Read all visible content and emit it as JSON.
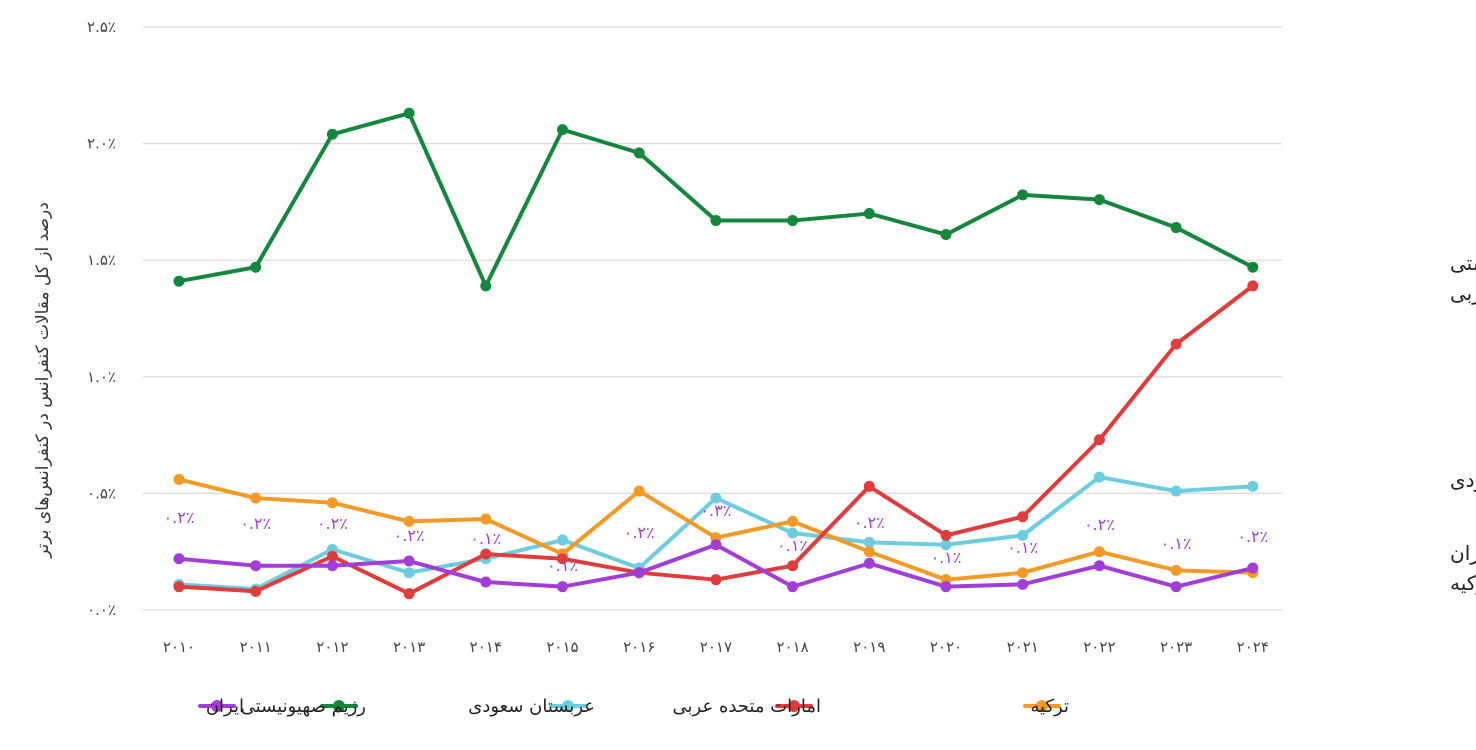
{
  "chart_data": {
    "type": "line",
    "ylabel": "درصد از کل مقالات کنفرانس در کنفرانس‌های برتر",
    "x": [
      "۲۰۱۰",
      "۲۰۱۱",
      "۲۰۱۲",
      "۲۰۱۳",
      "۲۰۱۴",
      "۲۰۱۵",
      "۲۰۱۶",
      "۲۰۱۷",
      "۲۰۱۸",
      "۲۰۱۹",
      "۲۰۲۰",
      "۲۰۲۱",
      "۲۰۲۲",
      "۲۰۲۳",
      "۲۰۲۴"
    ],
    "ylim": [
      0,
      2.5
    ],
    "yticks": [
      {
        "value": 0.0,
        "label": "۰.۰٪"
      },
      {
        "value": 0.5,
        "label": "۰.۵٪"
      },
      {
        "value": 1.0,
        "label": "۱.۰٪"
      },
      {
        "value": 1.5,
        "label": "۱.۵٪"
      },
      {
        "value": 2.0,
        "label": "۲.۰٪"
      },
      {
        "value": 2.5,
        "label": "۲.۵٪"
      }
    ],
    "grid": true,
    "legend_position": "bottom",
    "series": [
      {
        "name": "ایران",
        "color": "#a23ed6",
        "values": [
          0.22,
          0.19,
          0.19,
          0.21,
          0.12,
          0.1,
          0.16,
          0.28,
          0.1,
          0.2,
          0.1,
          0.11,
          0.19,
          0.1,
          0.18
        ],
        "data_labels": [
          "۰.۲٪",
          "۰.۲٪",
          "۰.۲٪",
          "۰.۲٪",
          "۰.۱٪",
          "۰.۱٪",
          "۰.۲٪",
          "۰.۳٪",
          "۰.۱٪",
          "۰.۲٪",
          "۰.۱٪",
          "۰.۱٪",
          "۰.۲٪",
          "۰.۱٪",
          "۰.۲٪"
        ]
      },
      {
        "name": "رژیم صهیونیستی",
        "color": "#15873d",
        "values": [
          1.41,
          1.47,
          2.04,
          2.13,
          1.39,
          2.06,
          1.96,
          1.67,
          1.67,
          1.7,
          1.61,
          1.78,
          1.76,
          1.64,
          1.47
        ]
      },
      {
        "name": "عربستان سعودی",
        "color": "#6ccde0",
        "values": [
          0.11,
          0.09,
          0.26,
          0.16,
          0.22,
          0.3,
          0.18,
          0.48,
          0.33,
          0.29,
          0.28,
          0.32,
          0.57,
          0.51,
          0.53
        ]
      },
      {
        "name": "امارات متحده عربی",
        "color": "#e03c3c",
        "values": [
          0.1,
          0.08,
          0.23,
          0.07,
          0.24,
          0.22,
          0.16,
          0.13,
          0.19,
          0.53,
          0.32,
          0.4,
          0.73,
          1.14,
          1.39
        ]
      },
      {
        "name": "ترکیه",
        "color": "#f39a26",
        "values": [
          0.56,
          0.48,
          0.46,
          0.38,
          0.39,
          0.24,
          0.51,
          0.31,
          0.38,
          0.25,
          0.13,
          0.16,
          0.25,
          0.17,
          0.16
        ]
      }
    ],
    "side_labels": [
      {
        "text": "رژیم صهیونیستی",
        "value": 1.5
      },
      {
        "text": "امارات متحده عربی",
        "value": 1.36
      },
      {
        "text": "عربستان سعودی",
        "value": 0.56
      },
      {
        "text": "ایران",
        "value": 0.24
      },
      {
        "text": "ترکیه",
        "value": 0.11
      }
    ]
  }
}
